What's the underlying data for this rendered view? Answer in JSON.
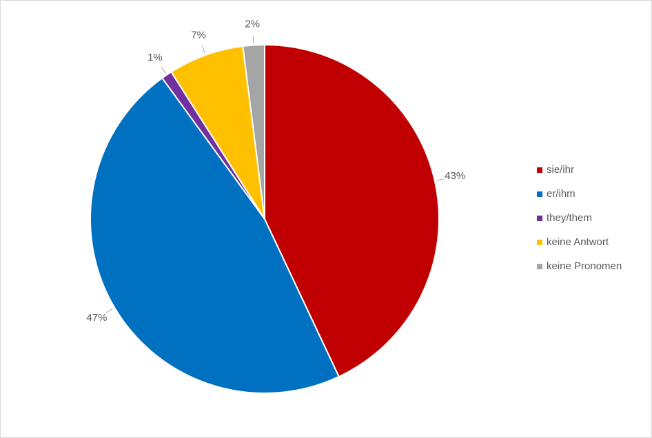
{
  "chart_data": {
    "type": "pie",
    "categories": [
      "sie/ihr",
      "er/ihm",
      "they/them",
      "keine Antwort",
      "keine Pronomen"
    ],
    "values": [
      43,
      47,
      1,
      7,
      2
    ],
    "value_labels": [
      "43%",
      "47%",
      "1%",
      "7%",
      "2%"
    ],
    "colors": [
      "#c00000",
      "#0070c0",
      "#7030a0",
      "#ffc000",
      "#a5a5a5"
    ],
    "legend": "right"
  }
}
